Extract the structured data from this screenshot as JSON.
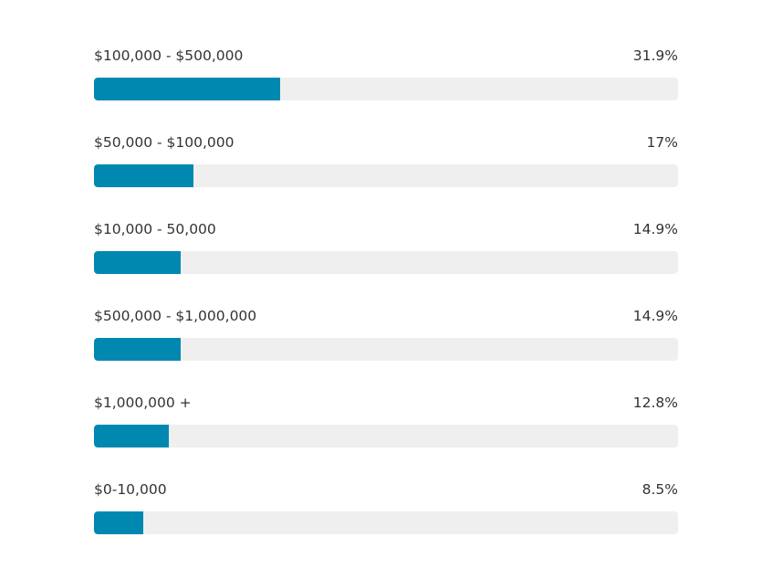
{
  "chart_data": {
    "type": "bar",
    "orientation": "horizontal",
    "categories": [
      "$100,000 - $500,000",
      "$50,000 - $100,000",
      "$10,000 - 50,000",
      "$500,000 - $1,000,000",
      "$1,000,000 +",
      "$0-10,000"
    ],
    "values": [
      31.9,
      17,
      14.9,
      14.9,
      12.8,
      8.5
    ],
    "value_labels": [
      "31.9%",
      "17%",
      "14.9%",
      "14.9%",
      "12.8%",
      "8.5%"
    ],
    "xlim": [
      0,
      100
    ],
    "grid": false,
    "colors": {
      "bar": "#0088b0",
      "track": "#efefef",
      "text": "#333333"
    }
  }
}
